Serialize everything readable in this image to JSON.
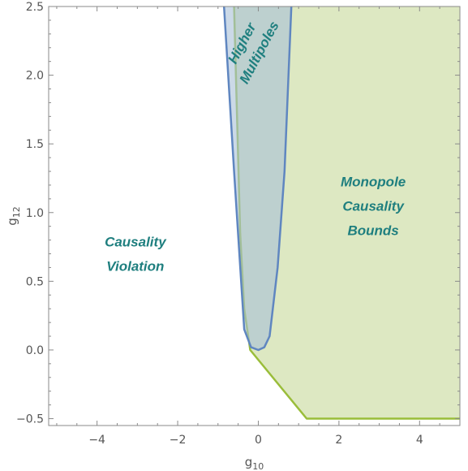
{
  "chart_data": {
    "type": "area",
    "xlim": [
      -5.2,
      5.0
    ],
    "ylim": [
      -0.55,
      2.5
    ],
    "x_ticks": [
      -4,
      -2,
      0,
      2,
      4
    ],
    "y_ticks": [
      -0.5,
      0.0,
      0.5,
      1.0,
      1.5,
      2.0,
      2.5
    ],
    "x_tick_labels": [
      "−4",
      "−2",
      "0",
      "2",
      "4"
    ],
    "y_tick_labels": [
      "−0.5",
      "0.0",
      "0.5",
      "1.0",
      "1.5",
      "2.0",
      "2.5"
    ],
    "xlabel": {
      "base": "g",
      "sub": "10"
    },
    "ylabel": {
      "base": "g",
      "sub": "12"
    },
    "grid": false,
    "series": [
      {
        "color": "#dde8c2",
        "stroke": "#9abd3a",
        "boundary_open_at_right_edge": true,
        "points": [
          [
            -0.6,
            2.5
          ],
          [
            -0.45,
            0.85
          ],
          [
            -0.35,
            0.3
          ],
          [
            -0.2,
            0.0
          ],
          [
            1.2,
            -0.5
          ],
          [
            5.0,
            -0.5
          ],
          [
            5.0,
            2.5
          ]
        ]
      },
      {
        "color": "#a9bfd7",
        "stroke": "#5f86c0",
        "points": [
          [
            -0.85,
            2.5
          ],
          [
            -0.6,
            1.3
          ],
          [
            -0.35,
            0.15
          ],
          [
            -0.18,
            0.02
          ],
          [
            0.0,
            0.0
          ],
          [
            0.15,
            0.02
          ],
          [
            0.28,
            0.1
          ],
          [
            0.48,
            0.6
          ],
          [
            0.65,
            1.3
          ],
          [
            0.82,
            2.5
          ]
        ]
      }
    ],
    "annotations": [
      {
        "lines": [
          "Monopole",
          "Causality",
          "Bounds"
        ],
        "x": 2.85,
        "y": 1.05
      },
      {
        "lines": [
          "Causality",
          "Violation"
        ],
        "x": -3.05,
        "y": 0.7
      }
    ],
    "rotated_annotation": {
      "lines": [
        "Higher",
        "Multipoles"
      ],
      "x": -0.2,
      "y": 2.2,
      "angle": -62
    }
  }
}
